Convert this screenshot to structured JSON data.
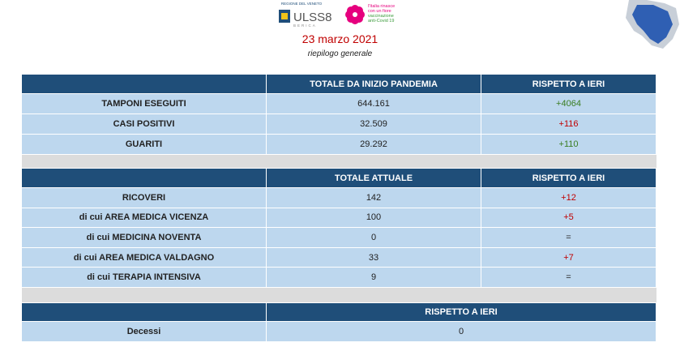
{
  "header": {
    "region": "REGIONE DEL VENETO",
    "ulss": "ULSS8",
    "ulss_sub": "BERICA",
    "campaign": [
      "l'Italia rinasce",
      "con un fiore",
      "vaccinazione",
      "anti-Covid 19"
    ],
    "date": "23 marzo 2021",
    "subtitle": "riepilogo generale"
  },
  "tables": [
    {
      "columns": [
        "TOTALE DA INIZIO PANDEMIA",
        "RISPETTO A IERI"
      ],
      "rows": [
        [
          "TAMPONI ESEGUITI",
          "644.161",
          "+4064"
        ],
        [
          "CASI POSITIVI",
          "32.509",
          "+116"
        ],
        [
          "GUARITI",
          "29.292",
          "+110"
        ]
      ]
    },
    {
      "columns": [
        "TOTALE ATTUALE",
        "RISPETTO A IERI"
      ],
      "rows": [
        [
          "RICOVERI",
          "142",
          "+12"
        ],
        [
          "di cui AREA MEDICA VICENZA",
          "100",
          "+5"
        ],
        [
          "di cui MEDICINA NOVENTA",
          "0",
          "="
        ],
        [
          "di cui AREA MEDICA VALDAGNO",
          "33",
          "+7"
        ],
        [
          "di cui TERAPIA INTENSIVA",
          "9",
          "="
        ]
      ]
    },
    {
      "columns": [
        "RISPETTO A IERI"
      ],
      "rows": [
        [
          "Decessi",
          "0"
        ]
      ]
    }
  ]
}
